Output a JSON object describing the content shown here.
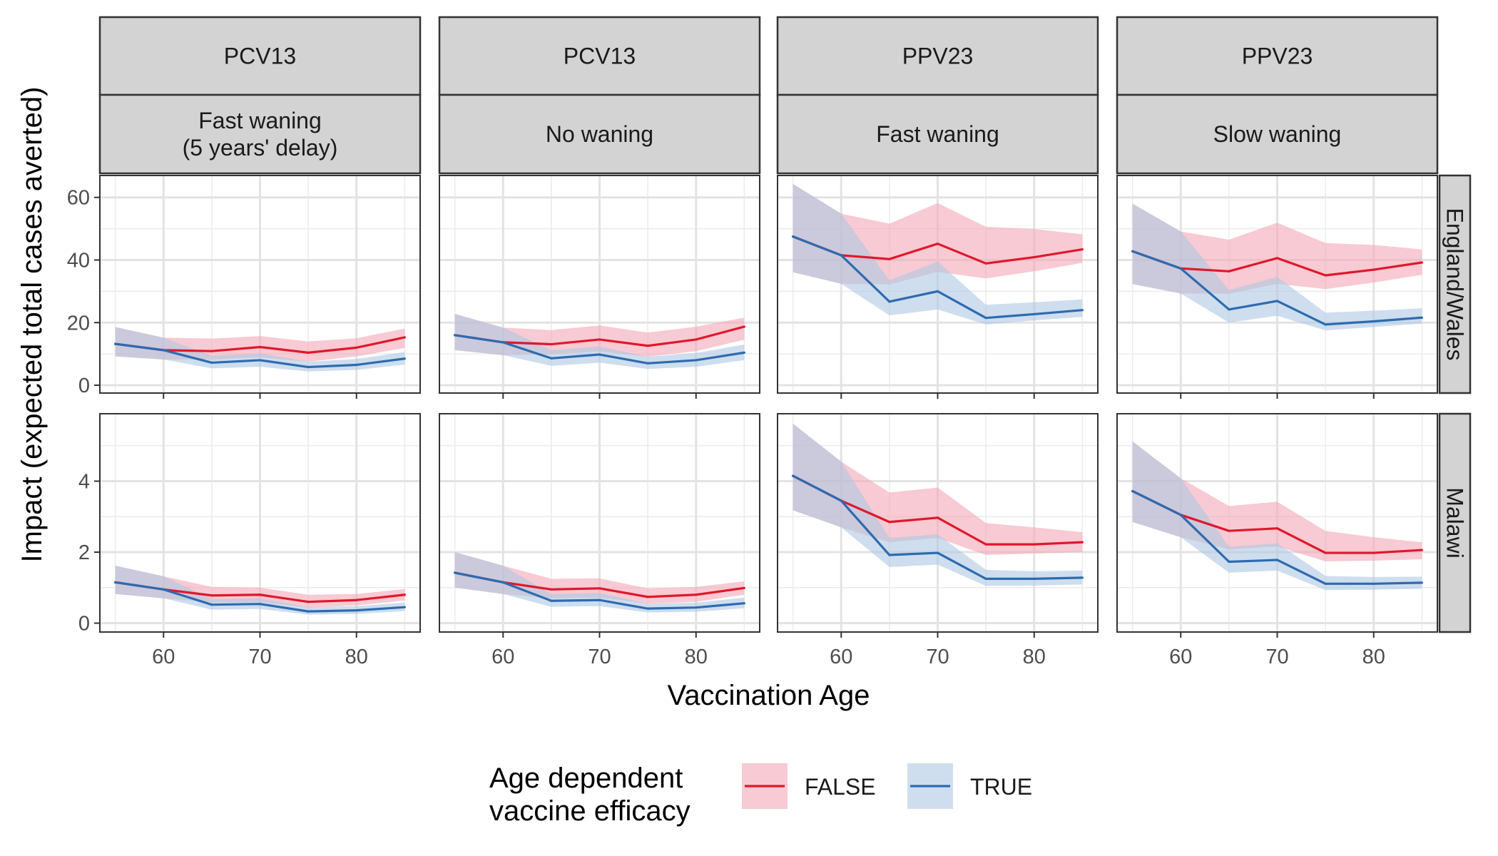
{
  "chart_data": {
    "type": "line",
    "xlabel": "Vaccination Age",
    "ylabel": "Impact (expected total cases averted)",
    "x": [
      55,
      60,
      65,
      70,
      75,
      80,
      85
    ],
    "xlim": [
      53.4,
      86.6
    ],
    "x_ticks": [
      60,
      70,
      80
    ],
    "grid": true,
    "legend": {
      "position": "bottom",
      "title_lines": [
        "Age dependent",
        "vaccine efficacy"
      ],
      "entries": [
        {
          "label": "FALSE",
          "color": "#e0182b",
          "fill": "#f4a7b5"
        },
        {
          "label": "TRUE",
          "color": "#2d6bb0",
          "fill": "#aec8e2"
        }
      ]
    },
    "columns": [
      {
        "vaccine": "PCV13",
        "waning": "Fast waning\n(5 years' delay)"
      },
      {
        "vaccine": "PCV13",
        "waning": "No waning"
      },
      {
        "vaccine": "PPV23",
        "waning": "Fast waning"
      },
      {
        "vaccine": "PPV23",
        "waning": "Slow waning"
      }
    ],
    "rows": [
      {
        "label": "England/Wales",
        "ylim": [
          -2.5,
          67
        ],
        "y_ticks": [
          0,
          20,
          40,
          60
        ]
      },
      {
        "label": "Malawi",
        "ylim": [
          -0.25,
          5.9
        ],
        "y_ticks": [
          0,
          2,
          4
        ]
      }
    ],
    "panels": [
      {
        "row": 0,
        "col": 0,
        "series": [
          {
            "name": "FALSE",
            "values": [
              13.2,
              11.2,
              10.9,
              12.2,
              10.4,
              12.0,
              15.3
            ],
            "lower": [
              9.2,
              8.2,
              8.2,
              8.9,
              7.5,
              9.2,
              11.9
            ],
            "upper": [
              18.6,
              15.2,
              14.9,
              15.7,
              14.0,
              15.0,
              18.1
            ]
          },
          {
            "name": "TRUE",
            "values": [
              13.2,
              11.2,
              7.2,
              8.0,
              5.8,
              6.5,
              8.5
            ],
            "lower": [
              9.2,
              8.2,
              5.4,
              5.9,
              4.4,
              4.9,
              6.6
            ],
            "upper": [
              18.6,
              15.2,
              9.4,
              10.2,
              7.5,
              8.4,
              10.6
            ]
          }
        ]
      },
      {
        "row": 0,
        "col": 1,
        "series": [
          {
            "name": "FALSE",
            "values": [
              16.0,
              13.7,
              13.1,
              14.6,
              12.6,
              14.6,
              18.7
            ],
            "lower": [
              11.2,
              9.6,
              9.9,
              10.8,
              9.1,
              10.9,
              14.5
            ],
            "upper": [
              22.8,
              18.4,
              17.6,
              19.1,
              16.8,
              18.7,
              21.6
            ]
          },
          {
            "name": "TRUE",
            "values": [
              16.0,
              13.7,
              8.6,
              9.8,
              7.0,
              8.0,
              10.4
            ],
            "lower": [
              11.2,
              9.6,
              6.2,
              7.2,
              5.2,
              5.9,
              8.0
            ],
            "upper": [
              22.8,
              18.4,
              11.2,
              12.4,
              9.1,
              10.3,
              13.0
            ]
          }
        ]
      },
      {
        "row": 0,
        "col": 2,
        "series": [
          {
            "name": "FALSE",
            "values": [
              47.5,
              41.5,
              40.3,
              45.2,
              38.9,
              40.9,
              43.4
            ],
            "lower": [
              36.1,
              32.4,
              32.2,
              36.2,
              34.1,
              36.4,
              39.1
            ],
            "upper": [
              64.3,
              54.8,
              51.6,
              58.2,
              50.6,
              49.9,
              48.2
            ]
          },
          {
            "name": "TRUE",
            "values": [
              47.5,
              41.5,
              26.7,
              30.0,
              21.5,
              22.7,
              24.0
            ],
            "lower": [
              36.1,
              32.4,
              22.3,
              24.2,
              19.4,
              20.7,
              21.8
            ],
            "upper": [
              64.3,
              54.8,
              33.5,
              39.5,
              25.7,
              26.5,
              27.4
            ]
          }
        ]
      },
      {
        "row": 0,
        "col": 3,
        "series": [
          {
            "name": "FALSE",
            "values": [
              42.8,
              37.3,
              36.4,
              40.6,
              35.1,
              36.9,
              39.2
            ],
            "lower": [
              32.3,
              29.3,
              29.2,
              32.4,
              30.7,
              32.8,
              35.3
            ],
            "upper": [
              58.0,
              49.1,
              46.5,
              51.9,
              45.4,
              44.8,
              43.4
            ]
          },
          {
            "name": "TRUE",
            "values": [
              42.8,
              37.3,
              24.2,
              26.9,
              19.4,
              20.4,
              21.6
            ],
            "lower": [
              32.3,
              29.3,
              20.0,
              22.2,
              17.5,
              18.6,
              19.7
            ],
            "upper": [
              58.0,
              49.1,
              30.4,
              34.6,
              23.2,
              23.8,
              24.6
            ]
          }
        ]
      },
      {
        "row": 1,
        "col": 0,
        "series": [
          {
            "name": "FALSE",
            "values": [
              1.15,
              0.95,
              0.78,
              0.8,
              0.6,
              0.65,
              0.8
            ],
            "lower": [
              0.82,
              0.7,
              0.58,
              0.6,
              0.44,
              0.5,
              0.64
            ],
            "upper": [
              1.62,
              1.32,
              1.02,
              1.0,
              0.8,
              0.82,
              0.96
            ]
          },
          {
            "name": "TRUE",
            "values": [
              1.15,
              0.95,
              0.52,
              0.54,
              0.33,
              0.36,
              0.45
            ],
            "lower": [
              0.82,
              0.7,
              0.38,
              0.4,
              0.24,
              0.26,
              0.34
            ],
            "upper": [
              1.62,
              1.32,
              0.68,
              0.7,
              0.45,
              0.48,
              0.58
            ]
          }
        ]
      },
      {
        "row": 1,
        "col": 1,
        "series": [
          {
            "name": "FALSE",
            "values": [
              1.42,
              1.15,
              0.95,
              0.98,
              0.74,
              0.8,
              0.99
            ],
            "lower": [
              1.0,
              0.82,
              0.7,
              0.72,
              0.55,
              0.6,
              0.8
            ],
            "upper": [
              2.0,
              1.62,
              1.25,
              1.26,
              0.98,
              1.02,
              1.18
            ]
          },
          {
            "name": "TRUE",
            "values": [
              1.42,
              1.15,
              0.63,
              0.65,
              0.41,
              0.44,
              0.56
            ],
            "lower": [
              1.0,
              0.82,
              0.46,
              0.48,
              0.3,
              0.32,
              0.42
            ],
            "upper": [
              2.0,
              1.62,
              0.82,
              0.85,
              0.55,
              0.58,
              0.72
            ]
          }
        ]
      },
      {
        "row": 1,
        "col": 2,
        "series": [
          {
            "name": "FALSE",
            "values": [
              4.15,
              3.45,
              2.85,
              2.97,
              2.22,
              2.22,
              2.28
            ],
            "lower": [
              3.18,
              2.7,
              2.28,
              2.4,
              1.92,
              1.96,
              2.0
            ],
            "upper": [
              5.62,
              4.55,
              3.68,
              3.82,
              2.82,
              2.7,
              2.56
            ]
          },
          {
            "name": "TRUE",
            "values": [
              4.15,
              3.45,
              1.92,
              1.98,
              1.25,
              1.25,
              1.28
            ],
            "lower": [
              3.18,
              2.7,
              1.58,
              1.65,
              1.05,
              1.06,
              1.09
            ],
            "upper": [
              5.62,
              4.55,
              2.4,
              2.5,
              1.5,
              1.46,
              1.48
            ]
          }
        ]
      },
      {
        "row": 1,
        "col": 3,
        "series": [
          {
            "name": "FALSE",
            "values": [
              3.72,
              3.05,
              2.6,
              2.67,
              1.98,
              1.98,
              2.06
            ],
            "lower": [
              2.85,
              2.42,
              2.08,
              2.16,
              1.74,
              1.76,
              1.8
            ],
            "upper": [
              5.12,
              4.08,
              3.3,
              3.42,
              2.6,
              2.42,
              2.28
            ]
          },
          {
            "name": "TRUE",
            "values": [
              3.72,
              3.05,
              1.73,
              1.78,
              1.11,
              1.11,
              1.14
            ],
            "lower": [
              2.85,
              2.42,
              1.42,
              1.48,
              0.93,
              0.94,
              0.97
            ],
            "upper": [
              5.12,
              4.08,
              2.15,
              2.25,
              1.33,
              1.3,
              1.31
            ]
          }
        ]
      }
    ]
  }
}
